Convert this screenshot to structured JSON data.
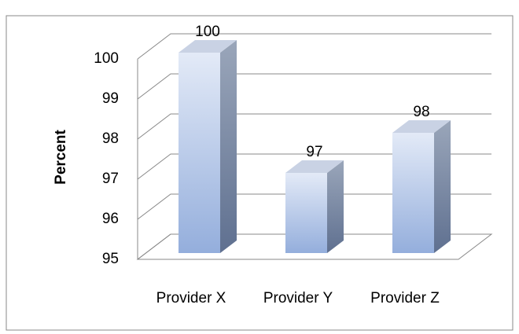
{
  "chart_data": {
    "type": "bar3d",
    "ylabel": "Percent",
    "categories": [
      "Provider X",
      "Provider Y",
      "Provider Z"
    ],
    "values": [
      100,
      97,
      98
    ],
    "color": "#94aedc",
    "ylim": [
      95,
      100
    ],
    "yticks": [
      95,
      96,
      97,
      98,
      99,
      100
    ],
    "grid": true
  }
}
